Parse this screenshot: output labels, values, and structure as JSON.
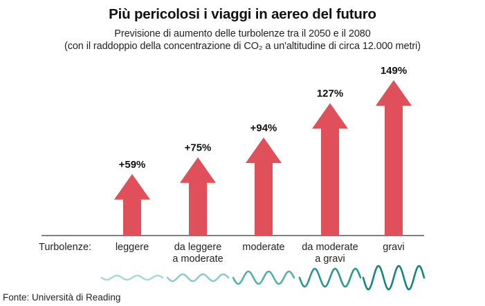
{
  "title": "Più pericolosi i viaggi in aereo del futuro",
  "subtitle_line1": "Previsione di aumento delle turbolenze tra il 2050 e il 2080",
  "subtitle_line2": "(con il raddoppio della concentrazione di CO₂ a un'altitudine di circa 12.000 metri)",
  "source": "Fonte: Università di Reading",
  "colors": {
    "arrow": "#e0505a",
    "wave_scale": [
      "#a9d9d5",
      "#8ccbc6",
      "#55b0a8",
      "#2a968d",
      "#15847a"
    ],
    "axis": "#333333"
  },
  "chart_data": {
    "type": "bar",
    "axis_label": "Turbolenze:",
    "categories": [
      [
        "leggere"
      ],
      [
        "da leggere",
        "a moderate"
      ],
      [
        "moderate"
      ],
      [
        "da moderate",
        "a gravi"
      ],
      [
        "gravi"
      ]
    ],
    "values": [
      59,
      75,
      94,
      127,
      149
    ],
    "value_labels": [
      "+59%",
      "+75%",
      "+94%",
      "127%",
      "149%"
    ],
    "ylim": [
      0,
      149
    ]
  }
}
